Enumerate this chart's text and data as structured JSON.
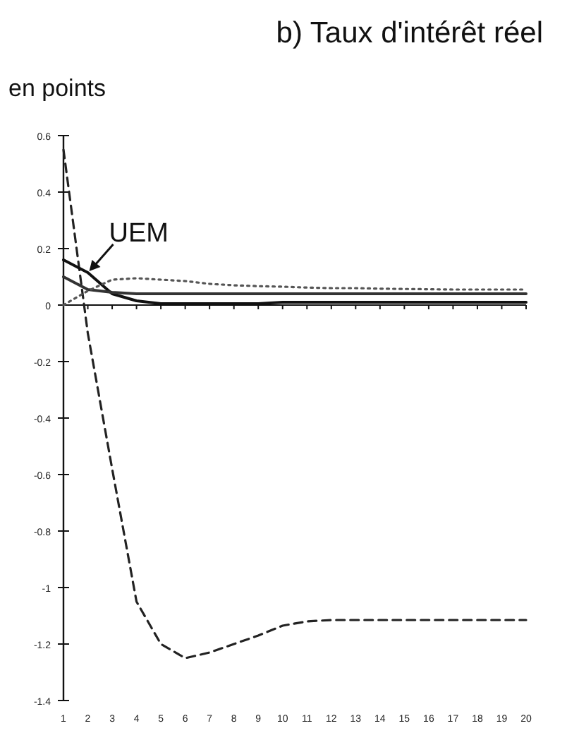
{
  "chart_data": {
    "type": "line",
    "title": "b) Taux d'intérêt réel",
    "ylabel": "en points",
    "x": [
      1,
      2,
      3,
      4,
      5,
      6,
      7,
      8,
      9,
      10,
      11,
      12,
      13,
      14,
      15,
      16,
      17,
      18,
      19,
      20
    ],
    "series": [
      {
        "color": "#222222",
        "line_style": "dashed",
        "values": [
          0.55,
          -0.1,
          -0.58,
          -1.05,
          -1.2,
          -1.25,
          -1.23,
          -1.2,
          -1.17,
          -1.135,
          -1.12,
          -1.115,
          -1.115,
          -1.115,
          -1.115,
          -1.115,
          -1.115,
          -1.115,
          -1.115,
          -1.115
        ]
      },
      {
        "color": "#111111",
        "line_style": "solid",
        "values": [
          0.16,
          0.115,
          0.04,
          0.015,
          0.005,
          0.005,
          0.005,
          0.005,
          0.005,
          0.01,
          0.01,
          0.01,
          0.01,
          0.01,
          0.01,
          0.01,
          0.01,
          0.01,
          0.01,
          0.01
        ]
      },
      {
        "color": "#333333",
        "line_style": "solid",
        "values": [
          0.1,
          0.055,
          0.045,
          0.04,
          0.04,
          0.04,
          0.04,
          0.04,
          0.04,
          0.04,
          0.04,
          0.04,
          0.04,
          0.04,
          0.04,
          0.04,
          0.04,
          0.04,
          0.04,
          0.04
        ]
      },
      {
        "color": "#555555",
        "line_style": "dotted",
        "values": [
          0.0,
          0.05,
          0.09,
          0.095,
          0.09,
          0.085,
          0.075,
          0.07,
          0.067,
          0.065,
          0.062,
          0.06,
          0.06,
          0.058,
          0.057,
          0.056,
          0.055,
          0.055,
          0.055,
          0.055
        ]
      }
    ],
    "annotations": [
      {
        "text": "UEM",
        "x": 2,
        "y": 0.115
      }
    ],
    "xlim": [
      1,
      20
    ],
    "xticks": [
      1,
      2,
      3,
      4,
      5,
      6,
      7,
      8,
      9,
      10,
      11,
      12,
      13,
      14,
      15,
      16,
      17,
      18,
      19,
      20
    ],
    "ylim": [
      -1.4,
      0.6
    ],
    "yticks": [
      {
        "value": 0.6,
        "label": "0.6"
      },
      {
        "value": 0.4,
        "label": "0.4"
      },
      {
        "value": 0.2,
        "label": "0.2"
      },
      0,
      {
        "value": -0.2,
        "label": "-0.2"
      },
      {
        "value": -0.4,
        "label": "-0.4"
      },
      {
        "value": -0.6,
        "label": "-0.6"
      },
      {
        "value": -0.8,
        "label": "-0.8"
      },
      -1,
      {
        "value": -1.2,
        "label": "-1.2"
      },
      {
        "value": -1.4,
        "label": "-1.4"
      }
    ],
    "marker": "none"
  }
}
